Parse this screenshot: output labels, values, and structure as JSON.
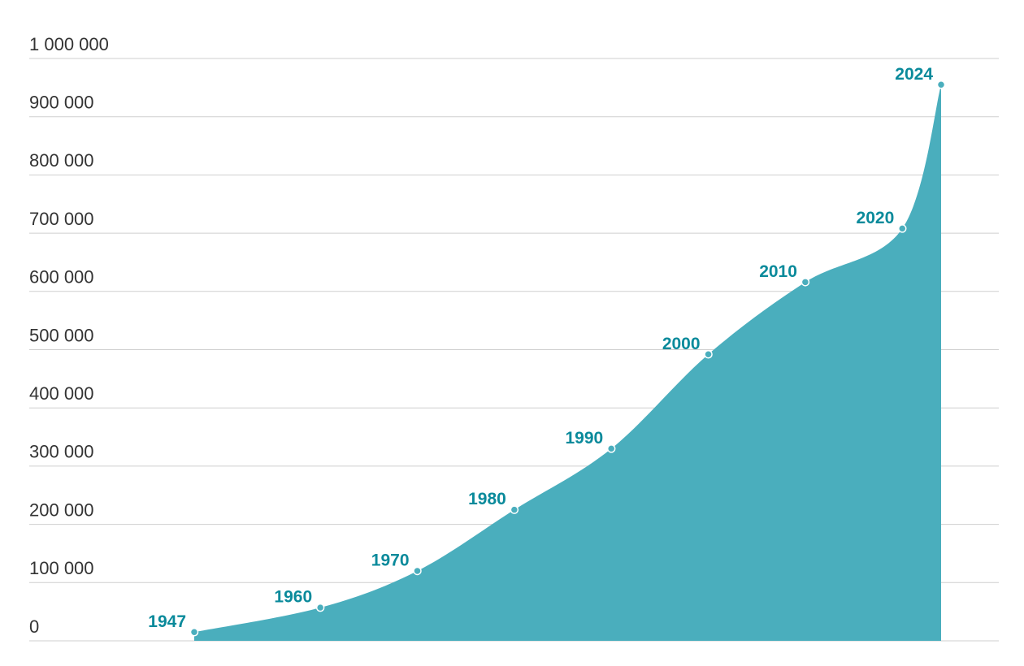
{
  "chart_data": {
    "type": "area",
    "x": [
      1947,
      1960,
      1970,
      1980,
      1990,
      2000,
      2010,
      2020,
      2024
    ],
    "values": [
      15000,
      57000,
      120000,
      225000,
      330000,
      492000,
      616000,
      708000,
      955000
    ],
    "color": "#4aaebd",
    "label_color": "#0a8a9b",
    "ylim": [
      0,
      1000000
    ],
    "yticks": [
      0,
      {
        "value": 100000,
        "label": "100 000"
      },
      {
        "value": 200000,
        "label": "200 000"
      },
      {
        "value": 300000,
        "label": "300 000"
      },
      {
        "value": 400000,
        "label": "400 000"
      },
      {
        "value": 500000,
        "label": "500 000"
      },
      {
        "value": 600000,
        "label": "600 000"
      },
      {
        "value": 700000,
        "label": "700 000"
      },
      {
        "value": 800000,
        "label": "800 000"
      },
      {
        "value": 900000,
        "label": "900 000"
      },
      {
        "value": 1000000,
        "label": "1 000 000"
      }
    ],
    "grid": true
  }
}
